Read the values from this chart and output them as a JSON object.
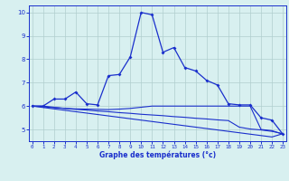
{
  "title": "Graphe des températures (°c)",
  "background_color": "#d8f0f0",
  "grid_color": "#b0cece",
  "line_color": "#1a2fcc",
  "x_hours": [
    0,
    1,
    2,
    3,
    4,
    5,
    6,
    7,
    8,
    9,
    10,
    11,
    12,
    13,
    14,
    15,
    16,
    17,
    18,
    19,
    20,
    21,
    22,
    23
  ],
  "main_line": [
    6.0,
    6.0,
    6.3,
    6.3,
    6.6,
    6.1,
    6.05,
    7.3,
    7.35,
    8.1,
    10.0,
    9.9,
    8.3,
    8.5,
    7.65,
    7.5,
    7.1,
    6.9,
    6.1,
    6.05,
    6.05,
    5.5,
    5.4,
    4.8
  ],
  "line2": [
    6.0,
    6.0,
    5.95,
    5.9,
    5.88,
    5.87,
    5.86,
    5.85,
    5.87,
    5.9,
    5.95,
    6.0,
    6.0,
    6.0,
    6.0,
    6.0,
    6.0,
    6.0,
    6.0,
    6.0,
    6.0,
    5.0,
    4.95,
    4.8
  ],
  "line3": [
    6.0,
    5.97,
    5.93,
    5.9,
    5.86,
    5.83,
    5.79,
    5.76,
    5.72,
    5.69,
    5.65,
    5.62,
    5.59,
    5.55,
    5.52,
    5.48,
    5.45,
    5.41,
    5.38,
    5.1,
    5.02,
    4.98,
    4.92,
    4.82
  ],
  "line4": [
    6.0,
    5.94,
    5.88,
    5.82,
    5.76,
    5.7,
    5.64,
    5.58,
    5.52,
    5.46,
    5.4,
    5.34,
    5.28,
    5.22,
    5.16,
    5.1,
    5.04,
    4.98,
    4.92,
    4.86,
    4.8,
    4.74,
    4.68,
    4.82
  ],
  "ylim": [
    4.5,
    10.3
  ],
  "yticks": [
    5,
    6,
    7,
    8,
    9,
    10
  ],
  "xlim": [
    -0.3,
    23.3
  ]
}
